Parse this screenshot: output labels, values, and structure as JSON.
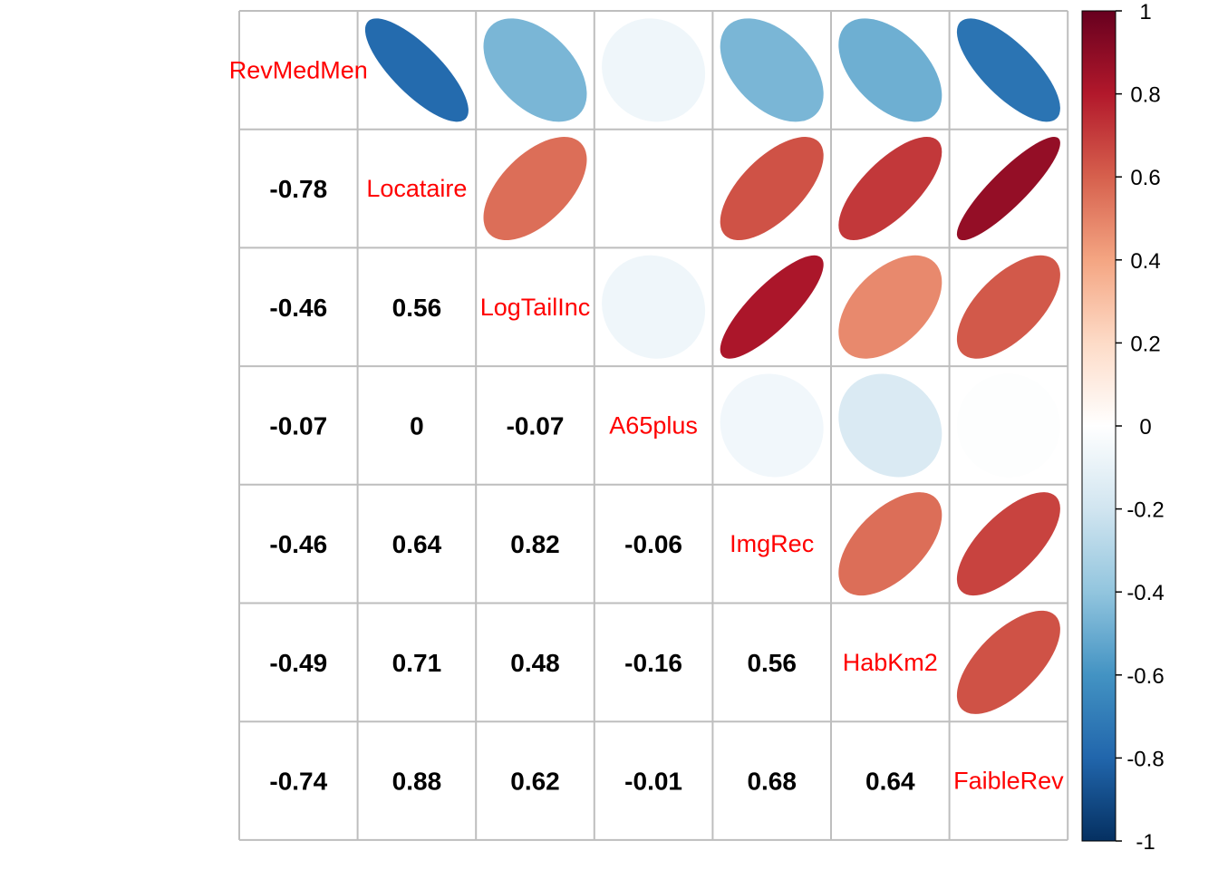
{
  "chart_data": {
    "type": "heatmap",
    "variables": [
      "RevMedMen",
      "Locataire",
      "LogTailInc",
      "A65plus",
      "ImgRec",
      "HabKm2",
      "FaibleRev"
    ],
    "matrix": [
      [
        1,
        -0.78,
        -0.46,
        -0.07,
        -0.46,
        -0.49,
        -0.74
      ],
      [
        -0.78,
        1,
        0.56,
        0,
        0.64,
        0.71,
        0.88
      ],
      [
        -0.46,
        0.56,
        1,
        -0.07,
        0.82,
        0.48,
        0.62
      ],
      [
        -0.07,
        0,
        -0.07,
        1,
        -0.06,
        -0.16,
        -0.01
      ],
      [
        -0.46,
        0.64,
        0.82,
        -0.06,
        1,
        0.56,
        0.68
      ],
      [
        -0.49,
        0.71,
        0.48,
        -0.16,
        0.56,
        1,
        0.64
      ],
      [
        -0.74,
        0.88,
        0.62,
        -0.01,
        0.68,
        0.64,
        1
      ]
    ],
    "upper_method": "ellipse",
    "lower_method": "number",
    "diagonal": "variable-names",
    "grid": true,
    "colorbar": {
      "range": [
        -1,
        1
      ],
      "ticks": [
        "1",
        "0.8",
        "0.6",
        "0.4",
        "0.2",
        "0",
        "-0.2",
        "-0.4",
        "-0.6",
        "-0.8",
        "-1"
      ],
      "placement": "right"
    },
    "colors": {
      "label": "#ff0000",
      "number": "#000000",
      "grid": "#bebebe",
      "scale_neg_end": "#053061",
      "scale_mid": "#ffffff",
      "scale_pos_end": "#67001f"
    }
  }
}
